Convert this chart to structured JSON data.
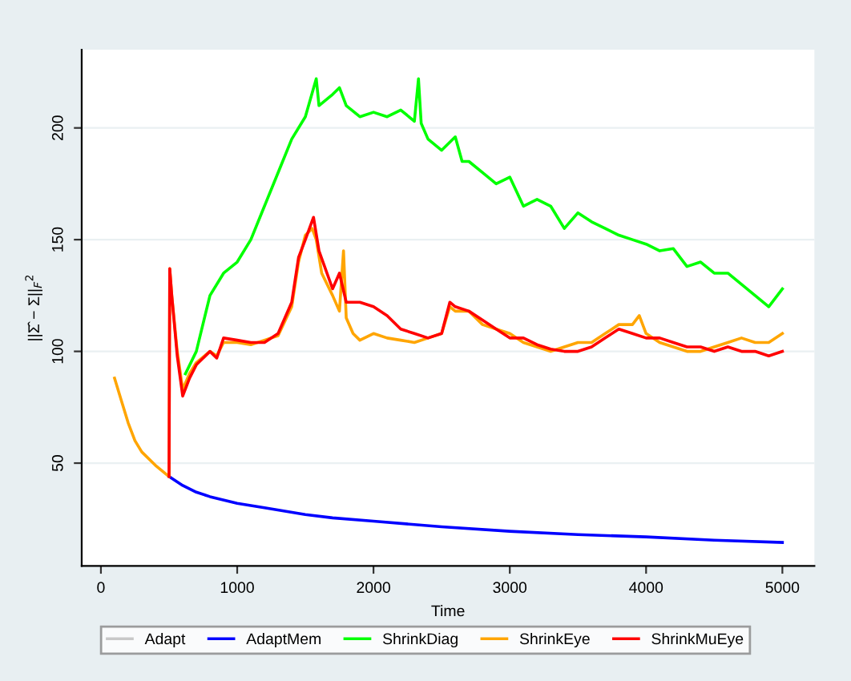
{
  "chart_data": {
    "type": "line",
    "xlabel": "Time",
    "ylabel": "||Σ̂ − Σ||$_{F}$$^{2}$",
    "xlim": [
      -141,
      5235
    ],
    "ylim": [
      4,
      235
    ],
    "xticks": [
      0,
      1000,
      2000,
      3000,
      4000,
      5000
    ],
    "yticks": [
      50,
      100,
      150,
      200
    ],
    "grid": "y",
    "legend": "bottom",
    "marker": "none",
    "line_style": "solid",
    "series": [
      {
        "name": "Adapt",
        "color": "#c8c8c8"
      },
      {
        "name": "AdaptMem",
        "color": "#0000ff",
        "x": [
          500,
          600,
          700,
          800,
          1000,
          1200,
          1500,
          1700,
          2000,
          2500,
          3000,
          3500,
          4000,
          4500,
          5000
        ],
        "values": [
          44,
          40,
          37,
          35,
          32,
          30,
          27,
          25.5,
          24,
          21.5,
          19.5,
          18,
          17,
          15.5,
          14.5
        ]
      },
      {
        "name": "ShrinkDiag",
        "color": "#00ff00",
        "x": [
          620,
          700,
          800,
          900,
          1000,
          1100,
          1200,
          1300,
          1400,
          1500,
          1580,
          1600,
          1700,
          1750,
          1800,
          1900,
          2000,
          2100,
          2200,
          2300,
          2330,
          2350,
          2400,
          2500,
          2600,
          2650,
          2700,
          2800,
          2900,
          3000,
          3100,
          3200,
          3300,
          3400,
          3500,
          3600,
          3700,
          3800,
          3900,
          4000,
          4100,
          4200,
          4300,
          4400,
          4500,
          4600,
          4700,
          4800,
          4900,
          5000
        ],
        "values": [
          90,
          100,
          125,
          135,
          140,
          150,
          165,
          180,
          195,
          205,
          222,
          210,
          215,
          218,
          210,
          205,
          207,
          205,
          208,
          203,
          222,
          202,
          195,
          190,
          196,
          185,
          185,
          180,
          175,
          178,
          165,
          168,
          165,
          155,
          162,
          158,
          155,
          152,
          150,
          148,
          145,
          146,
          138,
          140,
          135,
          135,
          130,
          125,
          120,
          128
        ]
      },
      {
        "name": "ShrinkEye",
        "color": "#ffa500",
        "x": [
          100,
          150,
          200,
          250,
          300,
          400,
          500,
          505,
          520,
          560,
          600,
          650,
          700,
          800,
          850,
          900,
          1000,
          1100,
          1200,
          1300,
          1400,
          1450,
          1500,
          1550,
          1580,
          1620,
          1700,
          1750,
          1780,
          1800,
          1850,
          1900,
          2000,
          2100,
          2200,
          2300,
          2400,
          2500,
          2560,
          2600,
          2700,
          2800,
          2900,
          3000,
          3100,
          3200,
          3300,
          3400,
          3500,
          3600,
          3700,
          3800,
          3900,
          3950,
          4000,
          4100,
          4200,
          4300,
          4400,
          4500,
          4600,
          4700,
          4800,
          4900,
          5000
        ],
        "values": [
          88,
          78,
          68,
          60,
          55,
          49,
          44,
          137,
          125,
          100,
          83,
          90,
          95,
          100,
          98,
          104,
          104,
          103,
          105,
          107,
          120,
          140,
          152,
          155,
          150,
          135,
          125,
          118,
          145,
          115,
          108,
          105,
          108,
          106,
          105,
          104,
          106,
          108,
          120,
          118,
          118,
          112,
          110,
          108,
          104,
          102,
          100,
          102,
          104,
          104,
          108,
          112,
          112,
          116,
          108,
          104,
          102,
          100,
          100,
          102,
          104,
          106,
          104,
          104,
          108
        ]
      },
      {
        "name": "ShrinkMuEye",
        "color": "#ff0000",
        "x": [
          500,
          505,
          520,
          560,
          600,
          650,
          700,
          800,
          850,
          900,
          1000,
          1100,
          1200,
          1300,
          1400,
          1450,
          1500,
          1560,
          1600,
          1700,
          1750,
          1800,
          1900,
          2000,
          2100,
          2200,
          2300,
          2400,
          2500,
          2560,
          2600,
          2700,
          2800,
          2900,
          3000,
          3100,
          3200,
          3300,
          3400,
          3500,
          3600,
          3700,
          3800,
          3900,
          4000,
          4100,
          4200,
          4300,
          4400,
          4500,
          4600,
          4700,
          4800,
          4900,
          5000
        ],
        "values": [
          44,
          137,
          125,
          98,
          80,
          88,
          94,
          100,
          97,
          106,
          105,
          104,
          104,
          108,
          122,
          142,
          150,
          160,
          145,
          128,
          135,
          122,
          122,
          120,
          116,
          110,
          108,
          106,
          108,
          122,
          120,
          118,
          114,
          110,
          106,
          106,
          103,
          101,
          100,
          100,
          102,
          106,
          110,
          108,
          106,
          106,
          104,
          102,
          102,
          100,
          102,
          100,
          100,
          98,
          100
        ]
      }
    ]
  }
}
